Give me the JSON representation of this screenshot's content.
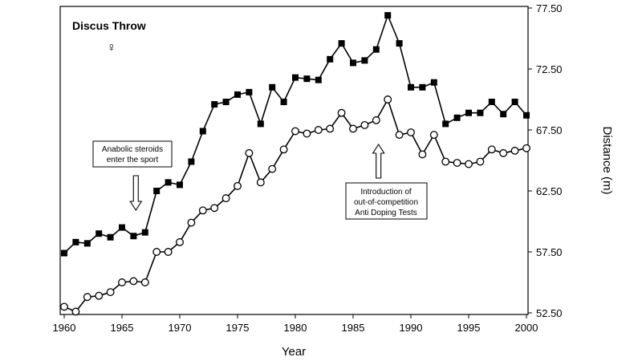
{
  "chart_data": {
    "type": "line",
    "title": "Discus Throw",
    "subtitle_symbol": "♀",
    "xlabel": "Year",
    "ylabel": "Distance (m)",
    "xlim": [
      1960,
      2000
    ],
    "ylim": [
      52.5,
      77.5
    ],
    "x_ticks": [
      "1960",
      "1965",
      "1970",
      "1975",
      "1980",
      "1985",
      "1990",
      "1995",
      "2000"
    ],
    "y_ticks": [
      "52.50",
      "57.50",
      "62.50",
      "67.50",
      "72.50",
      "77.50"
    ],
    "y_axis_side": "right",
    "grid": false,
    "legend": "none",
    "series": [
      {
        "marker": "filled-square",
        "color": "#000000",
        "x": [
          1960,
          1961,
          1962,
          1963,
          1964,
          1965,
          1966,
          1967,
          1968,
          1969,
          1970,
          1971,
          1972,
          1973,
          1974,
          1975,
          1976,
          1977,
          1978,
          1979,
          1980,
          1981,
          1982,
          1983,
          1984,
          1985,
          1986,
          1987,
          1988,
          1989,
          1990,
          1991,
          1992,
          1993,
          1994,
          1995,
          1996,
          1997,
          1998,
          1999,
          2000
        ],
        "values": [
          57.4,
          58.3,
          58.2,
          59.0,
          58.7,
          59.5,
          58.8,
          59.1,
          62.5,
          63.2,
          63.0,
          64.9,
          67.4,
          69.6,
          69.8,
          70.4,
          70.6,
          68.0,
          71.0,
          69.8,
          71.8,
          71.7,
          71.6,
          73.3,
          74.6,
          73.0,
          73.2,
          74.1,
          76.9,
          74.6,
          71.0,
          71.0,
          71.4,
          68.0,
          68.5,
          68.9,
          68.9,
          69.8,
          68.8,
          69.8,
          68.7
        ]
      },
      {
        "marker": "open-circle",
        "color": "#000000",
        "x": [
          1960,
          1961,
          1962,
          1963,
          1964,
          1965,
          1966,
          1967,
          1968,
          1969,
          1970,
          1971,
          1972,
          1973,
          1974,
          1975,
          1976,
          1977,
          1978,
          1979,
          1980,
          1981,
          1982,
          1983,
          1984,
          1985,
          1986,
          1987,
          1988,
          1989,
          1990,
          1991,
          1992,
          1993,
          1994,
          1995,
          1996,
          1997,
          1998,
          1999,
          2000
        ],
        "values": [
          53.0,
          52.6,
          53.8,
          53.9,
          54.2,
          55.0,
          55.1,
          55.0,
          57.5,
          57.5,
          58.3,
          59.9,
          60.9,
          61.1,
          61.9,
          62.9,
          65.6,
          63.2,
          64.3,
          65.9,
          67.4,
          67.2,
          67.5,
          67.6,
          68.9,
          67.6,
          67.9,
          68.3,
          70.0,
          67.1,
          67.3,
          65.5,
          67.1,
          64.9,
          64.8,
          64.7,
          64.9,
          65.9,
          65.6,
          65.8,
          66.0
        ]
      }
    ],
    "annotations": [
      {
        "id": "steroids",
        "lines": [
          "Anabolic steroids",
          "enter the sport"
        ],
        "arrow": "down",
        "arrow_year": 1966.2
      },
      {
        "id": "testing",
        "lines": [
          "Introduction of",
          "out-of-competition",
          "Anti Doping Tests"
        ],
        "arrow": "up",
        "arrow_year": 1987.2
      }
    ]
  }
}
